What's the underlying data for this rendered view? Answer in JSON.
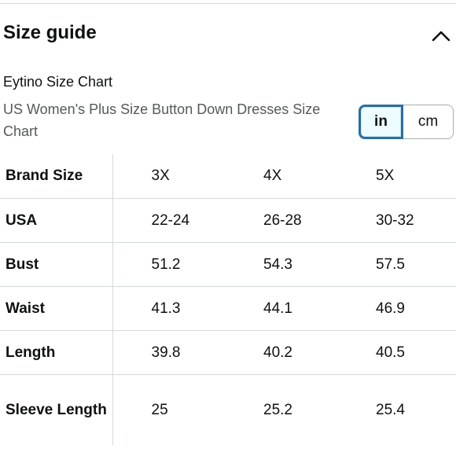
{
  "header": {
    "title": "Size guide",
    "collapse_icon": "chevron-up-icon"
  },
  "chart": {
    "name": "Eytino Size Chart",
    "subtitle": "US Women's Plus Size Button Down Dresses Size Chart"
  },
  "unit_toggle": {
    "selected": "in",
    "options": [
      "in",
      "cm"
    ]
  },
  "table": {
    "rows": [
      {
        "label": "Brand Size",
        "values": [
          "3X",
          "4X",
          "5X"
        ]
      },
      {
        "label": "USA",
        "values": [
          "22-24",
          "26-28",
          "30-32"
        ]
      },
      {
        "label": "Bust",
        "values": [
          "51.2",
          "54.3",
          "57.5"
        ]
      },
      {
        "label": "Waist",
        "values": [
          "41.3",
          "44.1",
          "46.9"
        ]
      },
      {
        "label": "Length",
        "values": [
          "39.8",
          "40.2",
          "40.5"
        ]
      },
      {
        "label": "Sleeve Length",
        "values": [
          "25",
          "25.2",
          "25.4"
        ]
      }
    ]
  },
  "colors": {
    "selected_border": "#2d6e9f",
    "selected_fill": "#edfdff",
    "divider": "#d5d9d9",
    "subtitle_text": "#565959"
  }
}
